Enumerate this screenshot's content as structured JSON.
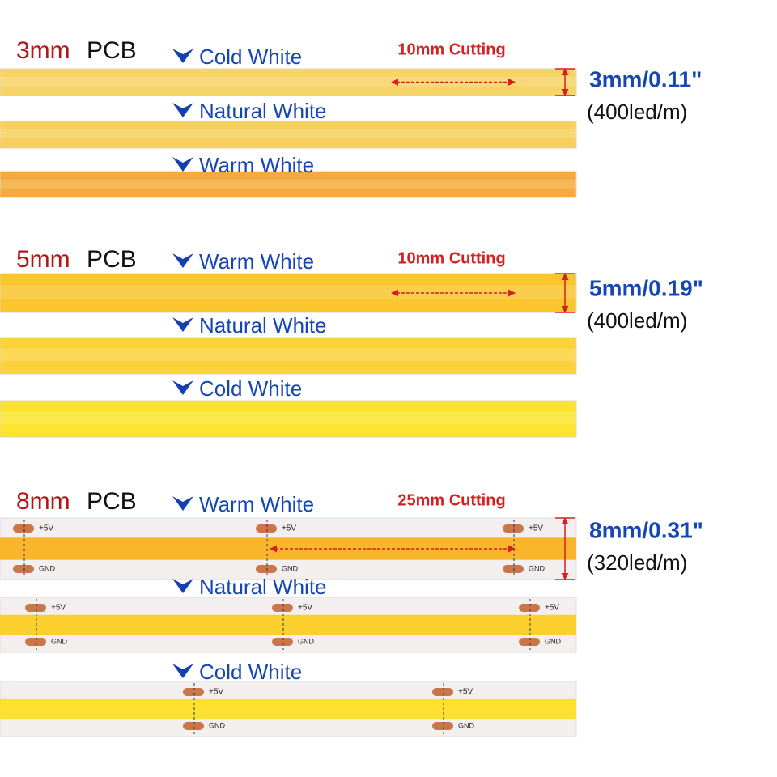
{
  "sections": [
    {
      "size": "3mm",
      "pcb": "PCB",
      "cutting": "10mm Cutting",
      "dimension": "3mm/0.11\"",
      "density": "(400led/m)",
      "strips": [
        {
          "label": "Cold White"
        },
        {
          "label": "Natural White"
        },
        {
          "label": "Warm White"
        }
      ]
    },
    {
      "size": "5mm",
      "pcb": "PCB",
      "cutting": "10mm Cutting",
      "dimension": "5mm/0.19\"",
      "density": "(400led/m)",
      "strips": [
        {
          "label": "Warm White"
        },
        {
          "label": "Natural White"
        },
        {
          "label": "Cold White"
        }
      ]
    },
    {
      "size": "8mm",
      "pcb": "PCB",
      "cutting": "25mm Cutting",
      "dimension": "8mm/0.31\"",
      "density": "(320led/m)",
      "strips": [
        {
          "label": "Warm White"
        },
        {
          "label": "Natural White"
        },
        {
          "label": "Cold White"
        }
      ]
    }
  ],
  "pads": {
    "positive": "+5V",
    "ground": "GND"
  }
}
